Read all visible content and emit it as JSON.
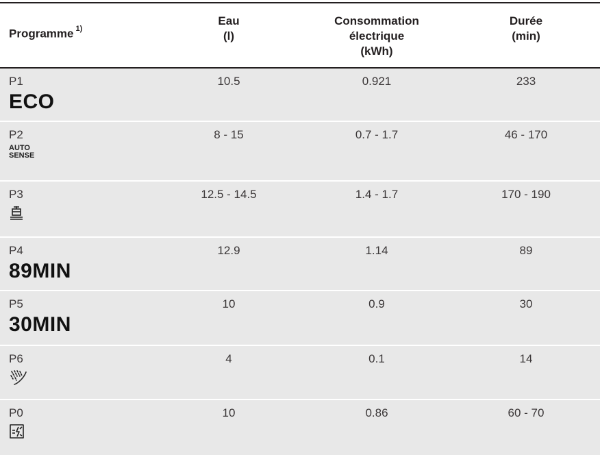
{
  "header": {
    "programme": "Programme",
    "programme_note": "1)",
    "eau_line1": "Eau",
    "eau_line2": "(l)",
    "conso_line1": "Consommation",
    "conso_line2": "électrique",
    "conso_line3": "(kWh)",
    "duree_line1": "Durée",
    "duree_line2": "(min)"
  },
  "rows": [
    {
      "code": "P1",
      "label": "ECO",
      "eau": "10.5",
      "conso": "0.921",
      "duree": "233"
    },
    {
      "code": "P2",
      "label_line1": "AUTO",
      "label_line2": "SENSE",
      "eau": "8 - 15",
      "conso": "0.7 - 1.7",
      "duree": "46 - 170"
    },
    {
      "code": "P3",
      "icon": "intensive-pots-icon",
      "eau": "12.5 - 14.5",
      "conso": "1.4 - 1.7",
      "duree": "170 - 190"
    },
    {
      "code": "P4",
      "label": "89MIN",
      "eau": "12.9",
      "conso": "1.14",
      "duree": "89"
    },
    {
      "code": "P5",
      "label": "30MIN",
      "eau": "10",
      "conso": "0.9",
      "duree": "30"
    },
    {
      "code": "P6",
      "icon": "rinse-spray-icon",
      "eau": "4",
      "conso": "0.1",
      "duree": "14"
    },
    {
      "code": "P0",
      "icon": "machine-care-icon",
      "eau": "10",
      "conso": "0.86",
      "duree": "60 - 70"
    }
  ],
  "colors": {
    "row_bg": "#e8e8e8",
    "text": "#231f20"
  }
}
